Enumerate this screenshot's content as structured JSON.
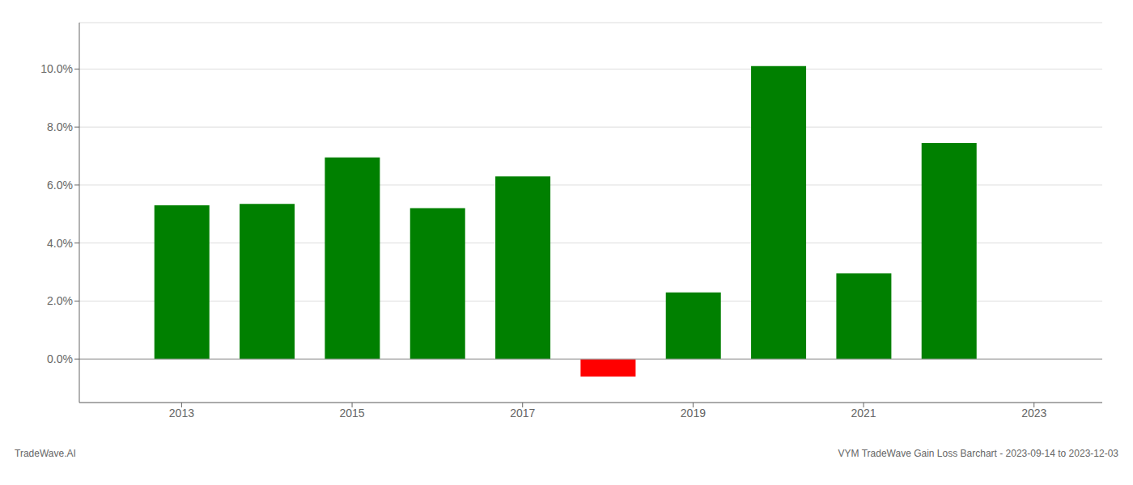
{
  "chart_data": {
    "type": "bar",
    "x": [
      2013,
      2014,
      2015,
      2016,
      2017,
      2018,
      2019,
      2020,
      2021,
      2022
    ],
    "values": [
      0.053,
      0.0535,
      0.0695,
      0.052,
      0.063,
      -0.006,
      0.023,
      0.101,
      0.0295,
      0.0745
    ],
    "colors": [
      "#008000",
      "#008000",
      "#008000",
      "#008000",
      "#008000",
      "#ff0000",
      "#008000",
      "#008000",
      "#008000",
      "#008000"
    ],
    "xlim": [
      2011.8,
      2023.8
    ],
    "xticks": [
      2013,
      2015,
      2017,
      2019,
      2021,
      2023
    ],
    "ylim": [
      -0.015,
      0.116
    ],
    "yticks": [
      {
        "value": 0.0,
        "label": "0.0%"
      },
      {
        "value": 0.02,
        "label": "2.0%"
      },
      {
        "value": 0.04,
        "label": "4.0%"
      },
      {
        "value": 0.06,
        "label": "6.0%"
      },
      {
        "value": 0.08,
        "label": "8.0%"
      },
      {
        "value": 0.1,
        "label": "10.0%"
      }
    ],
    "grid": true,
    "annotations": [
      "TradeWave.AI",
      "VYM TradeWave Gain Loss Barchart - 2023-09-14 to 2023-12-03"
    ]
  }
}
